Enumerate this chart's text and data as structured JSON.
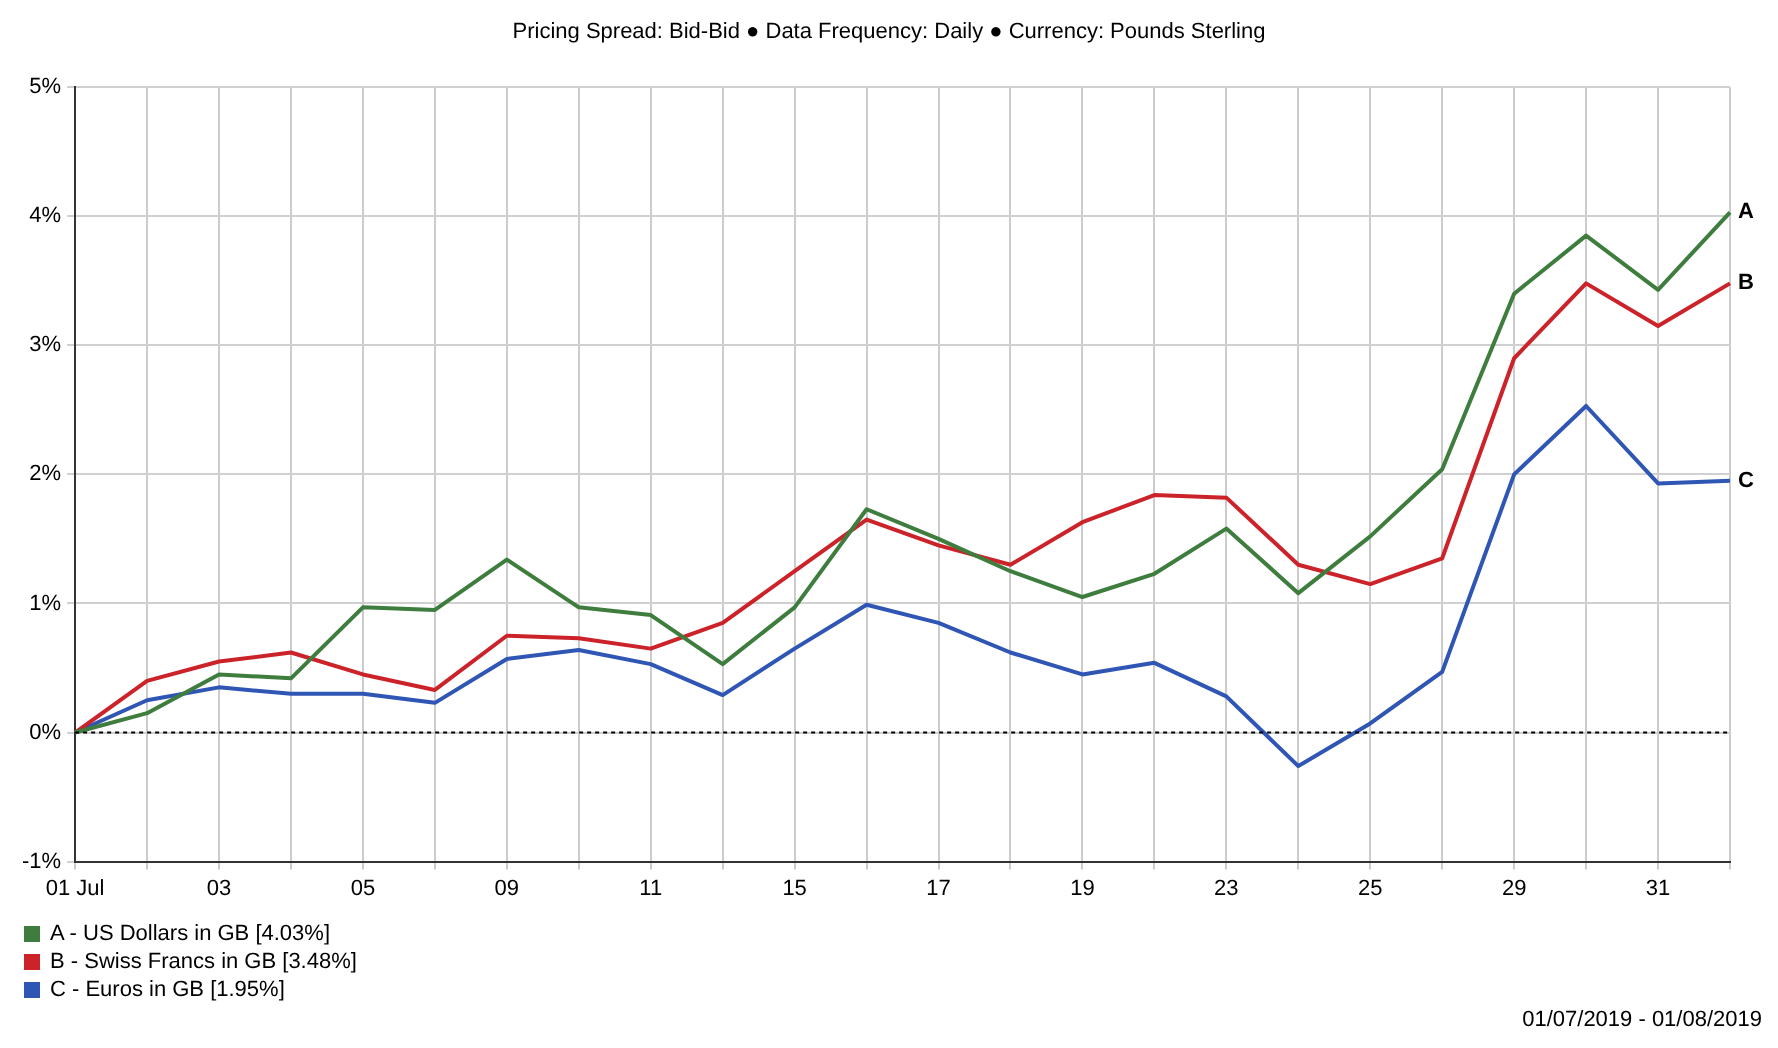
{
  "chart_data": {
    "type": "line",
    "title": "Pricing Spread: Bid-Bid ● Data Frequency: Daily ● Currency: Pounds Sterling",
    "categories": [
      "01 Jul",
      null,
      "03",
      null,
      "05",
      null,
      "09",
      null,
      "11",
      null,
      "15",
      null,
      "17",
      null,
      "19",
      null,
      "23",
      null,
      "25",
      null,
      "29",
      null,
      "31",
      null
    ],
    "series": [
      {
        "name": "A - US Dollars in GB [4.03%]",
        "color": "#3e7d3e",
        "values": [
          0,
          0.15,
          0.45,
          0.42,
          0.97,
          0.95,
          1.34,
          0.97,
          0.91,
          0.53,
          0.97,
          1.73,
          1.5,
          1.25,
          1.05,
          1.23,
          1.58,
          1.08,
          1.52,
          2.04,
          3.4,
          3.85,
          3.43,
          4.03
        ]
      },
      {
        "name": "B - Swiss Francs in GB [3.48%]",
        "color": "#cc2229",
        "values": [
          0,
          0.4,
          0.55,
          0.62,
          0.45,
          0.33,
          0.75,
          0.73,
          0.65,
          0.85,
          1.25,
          1.65,
          1.45,
          1.3,
          1.63,
          1.84,
          1.82,
          1.3,
          1.15,
          1.35,
          2.9,
          3.48,
          3.15,
          3.48
        ]
      },
      {
        "name": "C - Euros in GB [1.95%]",
        "color": "#2f55b5",
        "values": [
          0,
          0.25,
          0.35,
          0.3,
          0.3,
          0.23,
          0.57,
          0.64,
          0.53,
          0.29,
          0.65,
          0.99,
          0.85,
          0.62,
          0.45,
          0.54,
          0.28,
          -0.26,
          0.07,
          0.47,
          2.0,
          2.53,
          1.93,
          1.95
        ]
      }
    ],
    "ylim": [
      -1,
      5
    ],
    "yticks": [
      {
        "value": -1,
        "label": "-1%"
      },
      {
        "value": 0,
        "label": "0%"
      },
      {
        "value": 1,
        "label": "1%"
      },
      {
        "value": 2,
        "label": "2%"
      },
      {
        "value": 3,
        "label": "3%"
      },
      {
        "value": 4,
        "label": "4%"
      },
      {
        "value": 5,
        "label": "5%"
      }
    ],
    "grid": true,
    "legend": "bottom left",
    "marker": "none",
    "line_style": "solid",
    "ref_lines": [
      {
        "axis": "y",
        "value": 0,
        "color": "#000000",
        "line_style": "dotted"
      }
    ],
    "annotations": [
      "A",
      "B",
      "C",
      "01/07/2019 - 01/08/2019"
    ]
  }
}
